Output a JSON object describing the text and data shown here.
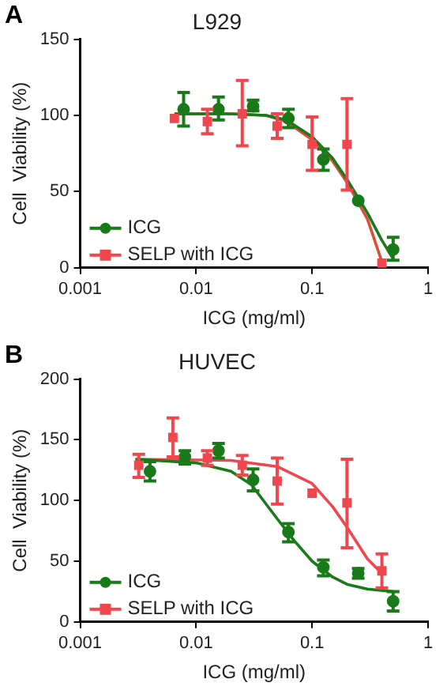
{
  "chart_data": [
    {
      "type": "scatter",
      "title": "L929",
      "xlabel": "ICG (mg/ml)",
      "ylabel": "Cell  Viability (%)",
      "log": "x",
      "grid": false,
      "legend": "bottom left",
      "annotations": [
        "A"
      ],
      "xlim": [
        0.001,
        1
      ],
      "xticks": [
        0.001,
        0.01,
        0.1,
        1
      ],
      "ylim": [
        0,
        150
      ],
      "yticks": [
        0,
        50,
        100,
        150
      ],
      "series": [
        {
          "name": "ICG",
          "color": "#1a7a1a",
          "marker": "circle",
          "x": [
            0.0078,
            0.0156,
            0.031,
            0.0625,
            0.125,
            0.25,
            0.5
          ],
          "values": [
            104,
            104,
            106,
            98,
            71,
            44,
            12
          ],
          "errors": [
            [
              93,
              115
            ],
            [
              97,
              112
            ],
            [
              103,
              110
            ],
            [
              92,
              104
            ],
            [
              64,
              78
            ],
            null,
            [
              5,
              20
            ]
          ]
        },
        {
          "name": "SELP with ICG",
          "color": "#f0474f",
          "marker": "square",
          "x": [
            0.0065,
            0.0125,
            0.025,
            0.05,
            0.1,
            0.2,
            0.4
          ],
          "values": [
            98,
            96,
            101,
            93,
            81,
            81,
            3
          ],
          "errors": [
            null,
            [
              88,
              104
            ],
            [
              80,
              123
            ],
            [
              85,
              101
            ],
            [
              64,
              99
            ],
            [
              51,
              111
            ],
            null
          ]
        },
        {
          "type": "line",
          "color": "#1a7a1a",
          "marker": "none",
          "x": [
            0.0065,
            0.02,
            0.04,
            0.06,
            0.1,
            0.15,
            0.2,
            0.3,
            0.4,
            0.5
          ],
          "values": [
            101,
            101,
            100,
            97,
            86,
            72,
            58,
            36,
            18,
            6
          ]
        },
        {
          "type": "line",
          "color": "#d8503a",
          "marker": "none",
          "x": [
            0.0065,
            0.02,
            0.04,
            0.06,
            0.1,
            0.15,
            0.2,
            0.3,
            0.4
          ],
          "values": [
            101,
            101,
            100,
            96,
            84,
            70,
            56,
            32,
            4
          ]
        }
      ]
    },
    {
      "type": "scatter",
      "title": "HUVEC",
      "xlabel": "ICG (mg/ml)",
      "ylabel": "Cell  Viability (%)",
      "log": "x",
      "grid": false,
      "legend": "bottom left",
      "annotations": [
        "B"
      ],
      "xlim": [
        0.001,
        1
      ],
      "xticks": [
        0.001,
        0.01,
        0.1,
        1
      ],
      "ylim": [
        0,
        200
      ],
      "yticks": [
        0,
        50,
        100,
        150,
        200
      ],
      "series": [
        {
          "name": "ICG",
          "color": "#1a7a1a",
          "marker": "circle",
          "x": [
            0.004,
            0.008,
            0.0156,
            0.031,
            0.0625,
            0.125,
            0.25,
            0.5
          ],
          "values": [
            124,
            136,
            141,
            117,
            74,
            45,
            40,
            17
          ],
          "errors": [
            [
              116,
              132
            ],
            [
              130,
              141
            ],
            [
              135,
              147
            ],
            [
              108,
              126
            ],
            [
              66,
              81
            ],
            [
              38,
              51
            ],
            [
              36,
              44
            ],
            [
              9,
              25
            ]
          ]
        },
        {
          "name": "SELP with ICG",
          "color": "#f0474f",
          "marker": "square",
          "x": [
            0.0032,
            0.0063,
            0.0125,
            0.025,
            0.05,
            0.1,
            0.2,
            0.4
          ],
          "values": [
            129,
            152,
            135,
            129,
            116,
            106,
            98,
            42
          ],
          "errors": [
            [
              119,
              138
            ],
            [
              136,
              168
            ],
            [
              129,
              141
            ],
            [
              121,
              137
            ],
            [
              97,
              135
            ],
            null,
            [
              61,
              134
            ],
            [
              28,
              56
            ]
          ]
        },
        {
          "type": "line",
          "color": "#1a7a1a",
          "marker": "none",
          "x": [
            0.003,
            0.01,
            0.02,
            0.03,
            0.05,
            0.07,
            0.1,
            0.15,
            0.2,
            0.3,
            0.5
          ],
          "values": [
            134,
            131,
            124,
            113,
            85,
            67,
            50,
            37,
            31,
            27,
            25
          ]
        },
        {
          "type": "line",
          "color": "#f0474f",
          "marker": "none",
          "x": [
            0.003,
            0.02,
            0.05,
            0.1,
            0.15,
            0.2,
            0.3,
            0.4
          ],
          "values": [
            134,
            133,
            128,
            114,
            95,
            78,
            52,
            40
          ]
        }
      ]
    }
  ]
}
